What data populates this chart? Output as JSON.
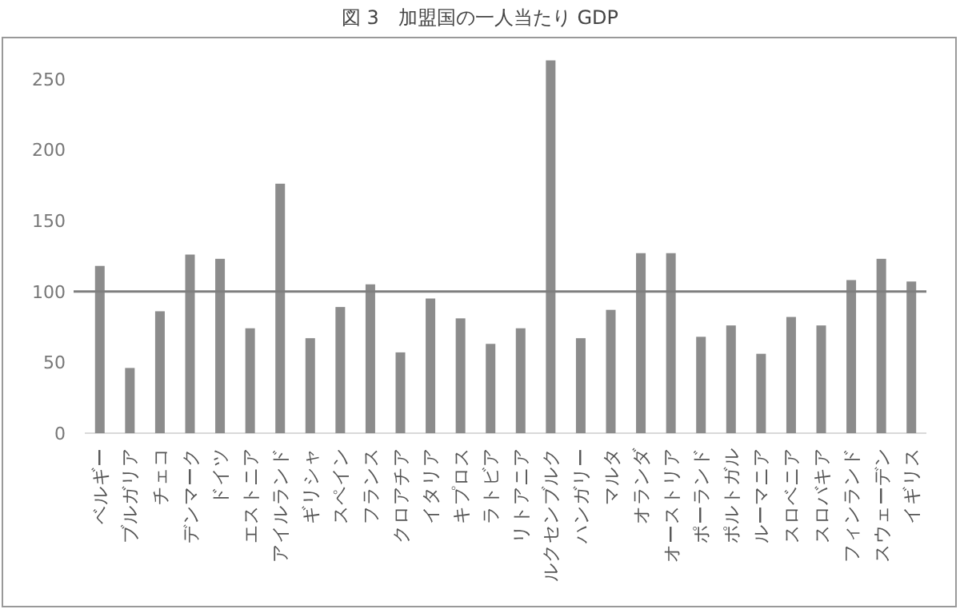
{
  "chart_data": {
    "type": "bar",
    "title": "図 3　加盟国の一人当たり GDP",
    "categories": [
      "ベルギー",
      "ブルガリア",
      "チェコ",
      "デンマーク",
      "ドイツ",
      "エストニア",
      "アイルランド",
      "ギリシャ",
      "スペイン",
      "フランス",
      "クロアチア",
      "イタリア",
      "キプロス",
      "ラトビア",
      "リトアニア",
      "ルクセンブルク",
      "ハンガリー",
      "マルタ",
      "オランダ",
      "オーストリア",
      "ポーランド",
      "ポルトガル",
      "ルーマニア",
      "スロベニア",
      "スロバキア",
      "フィンランド",
      "スウェーデン",
      "イギリス"
    ],
    "values": [
      118,
      46,
      86,
      126,
      123,
      74,
      176,
      67,
      89,
      105,
      57,
      95,
      81,
      63,
      74,
      263,
      67,
      87,
      127,
      127,
      68,
      76,
      56,
      82,
      76,
      108,
      123,
      107
    ],
    "color": "#8c8c8c",
    "ylim": [
      0,
      265
    ],
    "yticks": [
      0,
      50,
      100,
      150,
      200,
      250
    ],
    "grid": false,
    "ref_lines": [
      {
        "axis": "y",
        "value": 100,
        "color": "#7f7f7f"
      }
    ]
  }
}
